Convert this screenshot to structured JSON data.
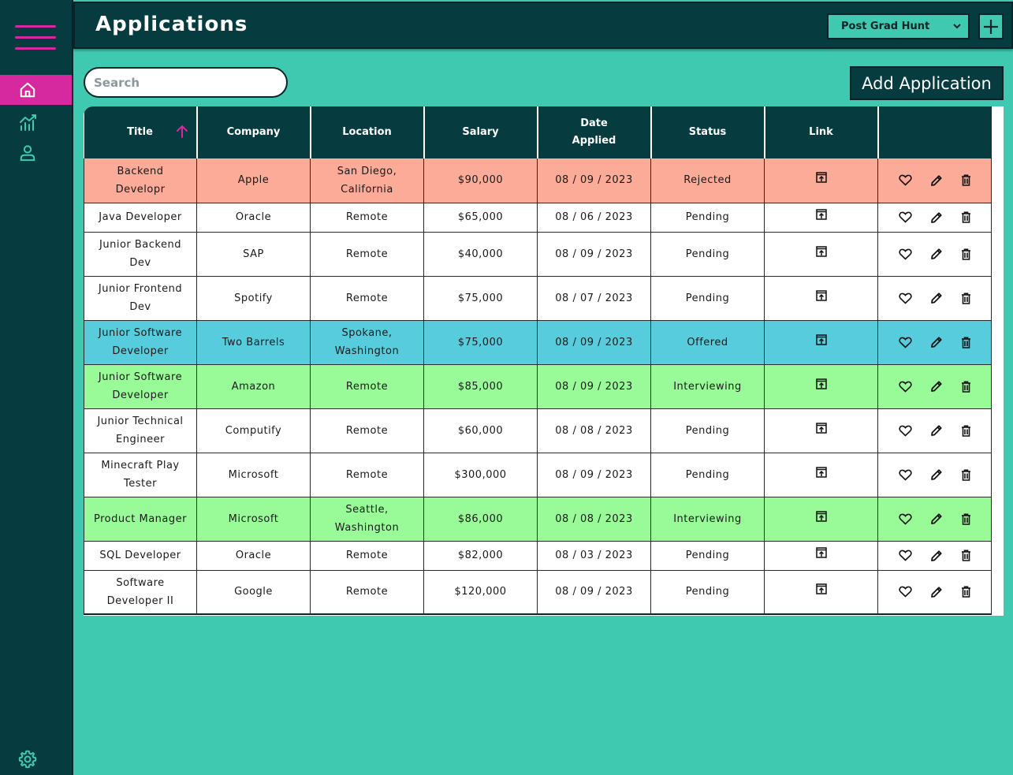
{
  "header": {
    "title": "Applications",
    "board_select": "Post Grad Hunt"
  },
  "search": {
    "placeholder": "Search"
  },
  "add_button": "Add Application",
  "colors": {
    "accent": "#d6289f",
    "dark": "#063b40",
    "background": "#40c9b1",
    "rejected": "#fbab98",
    "offered": "#56ccdc",
    "interviewing": "#98fb98"
  },
  "table": {
    "columns": [
      "Title",
      "Company",
      "Location",
      "Salary",
      "Date Applied",
      "Status",
      "Link",
      ""
    ],
    "rows": [
      {
        "title": "Backend Developr",
        "company": "Apple",
        "location": "San Diego, California",
        "salary": "$90,000",
        "date": "08 / 09 / 2023",
        "status": "Rejected"
      },
      {
        "title": "Java Developer",
        "company": "Oracle",
        "location": "Remote",
        "salary": "$65,000",
        "date": "08 / 06 / 2023",
        "status": "Pending"
      },
      {
        "title": "Junior Backend Dev",
        "company": "SAP",
        "location": "Remote",
        "salary": "$40,000",
        "date": "08 / 09 / 2023",
        "status": "Pending"
      },
      {
        "title": "Junior Frontend Dev",
        "company": "Spotify",
        "location": "Remote",
        "salary": "$75,000",
        "date": "08 / 07 / 2023",
        "status": "Pending"
      },
      {
        "title": "Junior Software Developer",
        "company": "Two Barrels",
        "location": "Spokane, Washington",
        "salary": "$75,000",
        "date": "08 / 09 / 2023",
        "status": "Offered"
      },
      {
        "title": "Junior Software Developer",
        "company": "Amazon",
        "location": "Remote",
        "salary": "$85,000",
        "date": "08 / 09 / 2023",
        "status": "Interviewing"
      },
      {
        "title": "Junior Technical Engineer",
        "company": "Computify",
        "location": "Remote",
        "salary": "$60,000",
        "date": "08 / 08 / 2023",
        "status": "Pending"
      },
      {
        "title": "Minecraft Play Tester",
        "company": "Microsoft",
        "location": "Remote",
        "salary": "$300,000",
        "date": "08 / 09 / 2023",
        "status": "Pending"
      },
      {
        "title": "Product Manager",
        "company": "Microsoft",
        "location": "Seattle, Washington",
        "salary": "$86,000",
        "date": "08 / 08 / 2023",
        "status": "Interviewing"
      },
      {
        "title": "SQL Developer",
        "company": "Oracle",
        "location": "Remote",
        "salary": "$82,000",
        "date": "08 / 03 / 2023",
        "status": "Pending"
      },
      {
        "title": "Software Developer II",
        "company": "Google",
        "location": "Remote",
        "salary": "$120,000",
        "date": "08 / 09 / 2023",
        "status": "Pending"
      }
    ]
  },
  "icons": {
    "menu": "hamburger-icon",
    "home": "home-icon",
    "stats": "chart-icon",
    "profile": "user-icon",
    "settings": "gear-icon",
    "sort": "arrow-up-icon",
    "link": "open-link-icon",
    "favorite": "heart-icon",
    "edit": "pencil-icon",
    "delete": "trash-icon"
  }
}
